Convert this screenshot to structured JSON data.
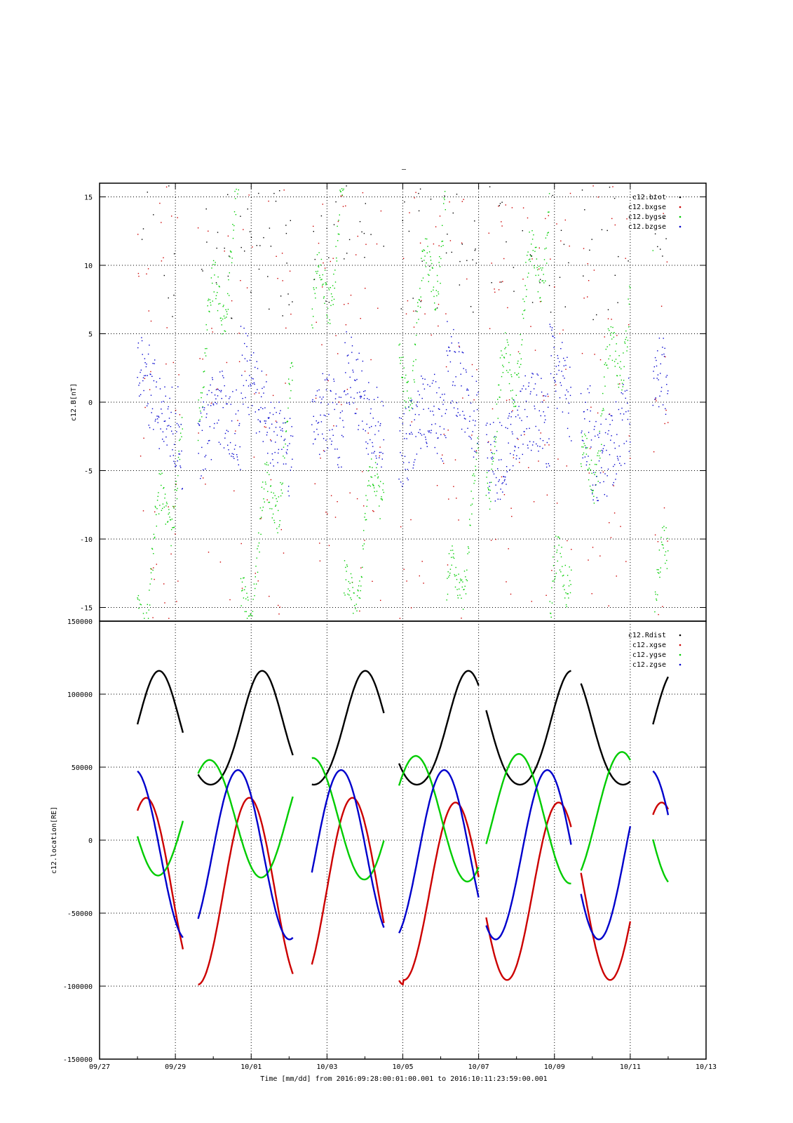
{
  "top_title": "–",
  "chart_data": [
    {
      "type": "scatter",
      "title": "",
      "ylabel": "c12.B[nT]",
      "xlabel": "",
      "x_unit": "day since 09/27 00:00",
      "ylim": [
        -16,
        16
      ],
      "yticks": [
        -15,
        -10,
        -5,
        0,
        5,
        10,
        15
      ],
      "ytick_labels": [
        "-15",
        "-10",
        "-5",
        "0",
        "5",
        "10",
        "15"
      ],
      "grid": true,
      "legend_position": "top-right",
      "series": [
        {
          "name": "c12.btot",
          "color": "#000000"
        },
        {
          "name": "c12.bxgse",
          "color": "#cc0000"
        },
        {
          "name": "c12.bygse",
          "color": "#00cc00"
        },
        {
          "name": "c12.bzgse",
          "color": "#0000cc"
        }
      ]
    },
    {
      "type": "line",
      "title": "",
      "ylabel": "c12.location[RE]",
      "xlabel": "Time [mm/dd]  from 2016:09:28:00:01:00.001  to  2016:10:11:23:59:00.001",
      "ylim": [
        -150000,
        150000
      ],
      "yticks": [
        -150000,
        -100000,
        -50000,
        0,
        50000,
        100000,
        150000
      ],
      "ytick_labels": [
        "-150000",
        "-100000",
        "-50000",
        "0",
        "50000",
        "100000",
        "150000"
      ],
      "xlim": [
        "09/27",
        "10/13"
      ],
      "xticks": [
        "09/27",
        "09/29",
        "10/01",
        "10/03",
        "10/05",
        "10/07",
        "10/09",
        "10/11",
        "10/13"
      ],
      "grid": true,
      "legend_position": "top-right",
      "series": [
        {
          "name": "c12.Rdist",
          "color": "#000000"
        },
        {
          "name": "c12.xgse",
          "color": "#cc0000"
        },
        {
          "name": "c12.ygse",
          "color": "#00cc00"
        },
        {
          "name": "c12.zgse",
          "color": "#0000cc"
        }
      ],
      "data_segments": [
        [
          1.0,
          2.2
        ],
        [
          2.6,
          5.1
        ],
        [
          5.6,
          7.5
        ],
        [
          7.9,
          10.0
        ],
        [
          10.2,
          12.45
        ],
        [
          12.7,
          14.0
        ],
        [
          14.6,
          15.0
        ]
      ]
    }
  ]
}
